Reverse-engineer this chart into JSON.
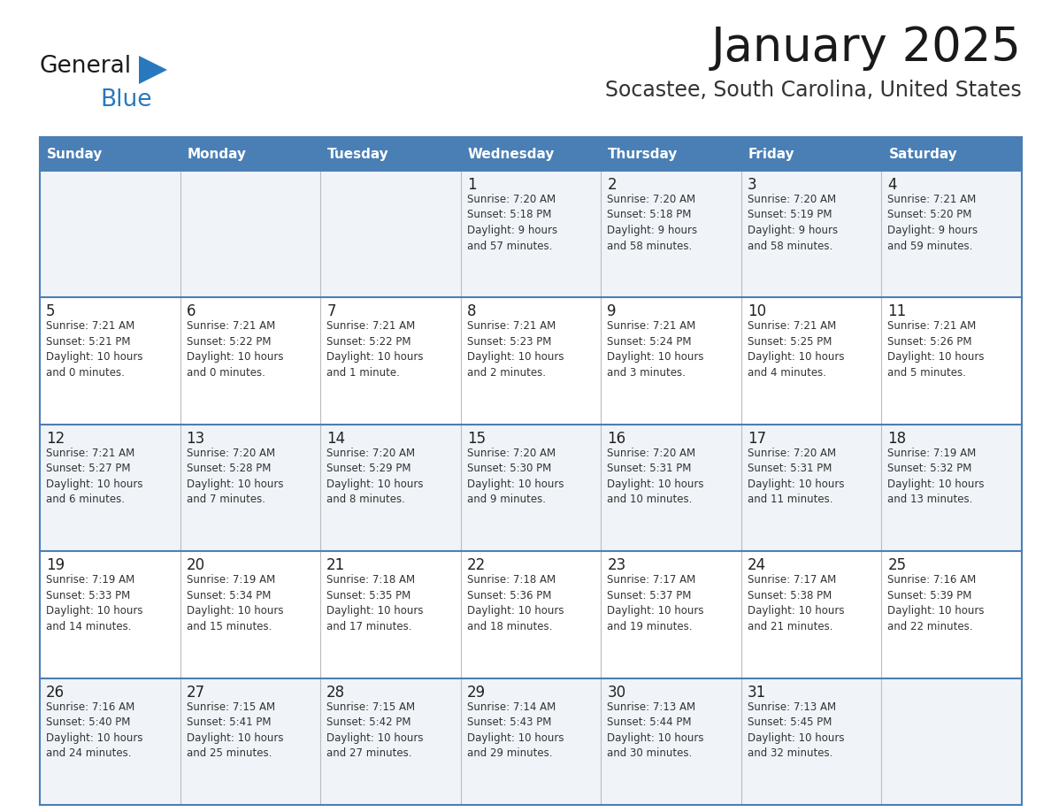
{
  "title": "January 2025",
  "subtitle": "Socastee, South Carolina, United States",
  "days_of_week": [
    "Sunday",
    "Monday",
    "Tuesday",
    "Wednesday",
    "Thursday",
    "Friday",
    "Saturday"
  ],
  "header_bg": "#4A7FB5",
  "header_text": "#FFFFFF",
  "row_bg_light": "#F0F4F8",
  "row_bg_white": "#FFFFFF",
  "border_color": "#4A7FB5",
  "cell_text_color": "#333333",
  "day_num_color": "#222222",
  "title_color": "#1a1a1a",
  "subtitle_color": "#333333",
  "logo_general_color": "#1a1a1a",
  "logo_blue_color": "#2878BE",
  "calendar": [
    [
      {
        "day": null,
        "info": ""
      },
      {
        "day": null,
        "info": ""
      },
      {
        "day": null,
        "info": ""
      },
      {
        "day": 1,
        "info": "Sunrise: 7:20 AM\nSunset: 5:18 PM\nDaylight: 9 hours\nand 57 minutes."
      },
      {
        "day": 2,
        "info": "Sunrise: 7:20 AM\nSunset: 5:18 PM\nDaylight: 9 hours\nand 58 minutes."
      },
      {
        "day": 3,
        "info": "Sunrise: 7:20 AM\nSunset: 5:19 PM\nDaylight: 9 hours\nand 58 minutes."
      },
      {
        "day": 4,
        "info": "Sunrise: 7:21 AM\nSunset: 5:20 PM\nDaylight: 9 hours\nand 59 minutes."
      }
    ],
    [
      {
        "day": 5,
        "info": "Sunrise: 7:21 AM\nSunset: 5:21 PM\nDaylight: 10 hours\nand 0 minutes."
      },
      {
        "day": 6,
        "info": "Sunrise: 7:21 AM\nSunset: 5:22 PM\nDaylight: 10 hours\nand 0 minutes."
      },
      {
        "day": 7,
        "info": "Sunrise: 7:21 AM\nSunset: 5:22 PM\nDaylight: 10 hours\nand 1 minute."
      },
      {
        "day": 8,
        "info": "Sunrise: 7:21 AM\nSunset: 5:23 PM\nDaylight: 10 hours\nand 2 minutes."
      },
      {
        "day": 9,
        "info": "Sunrise: 7:21 AM\nSunset: 5:24 PM\nDaylight: 10 hours\nand 3 minutes."
      },
      {
        "day": 10,
        "info": "Sunrise: 7:21 AM\nSunset: 5:25 PM\nDaylight: 10 hours\nand 4 minutes."
      },
      {
        "day": 11,
        "info": "Sunrise: 7:21 AM\nSunset: 5:26 PM\nDaylight: 10 hours\nand 5 minutes."
      }
    ],
    [
      {
        "day": 12,
        "info": "Sunrise: 7:21 AM\nSunset: 5:27 PM\nDaylight: 10 hours\nand 6 minutes."
      },
      {
        "day": 13,
        "info": "Sunrise: 7:20 AM\nSunset: 5:28 PM\nDaylight: 10 hours\nand 7 minutes."
      },
      {
        "day": 14,
        "info": "Sunrise: 7:20 AM\nSunset: 5:29 PM\nDaylight: 10 hours\nand 8 minutes."
      },
      {
        "day": 15,
        "info": "Sunrise: 7:20 AM\nSunset: 5:30 PM\nDaylight: 10 hours\nand 9 minutes."
      },
      {
        "day": 16,
        "info": "Sunrise: 7:20 AM\nSunset: 5:31 PM\nDaylight: 10 hours\nand 10 minutes."
      },
      {
        "day": 17,
        "info": "Sunrise: 7:20 AM\nSunset: 5:31 PM\nDaylight: 10 hours\nand 11 minutes."
      },
      {
        "day": 18,
        "info": "Sunrise: 7:19 AM\nSunset: 5:32 PM\nDaylight: 10 hours\nand 13 minutes."
      }
    ],
    [
      {
        "day": 19,
        "info": "Sunrise: 7:19 AM\nSunset: 5:33 PM\nDaylight: 10 hours\nand 14 minutes."
      },
      {
        "day": 20,
        "info": "Sunrise: 7:19 AM\nSunset: 5:34 PM\nDaylight: 10 hours\nand 15 minutes."
      },
      {
        "day": 21,
        "info": "Sunrise: 7:18 AM\nSunset: 5:35 PM\nDaylight: 10 hours\nand 17 minutes."
      },
      {
        "day": 22,
        "info": "Sunrise: 7:18 AM\nSunset: 5:36 PM\nDaylight: 10 hours\nand 18 minutes."
      },
      {
        "day": 23,
        "info": "Sunrise: 7:17 AM\nSunset: 5:37 PM\nDaylight: 10 hours\nand 19 minutes."
      },
      {
        "day": 24,
        "info": "Sunrise: 7:17 AM\nSunset: 5:38 PM\nDaylight: 10 hours\nand 21 minutes."
      },
      {
        "day": 25,
        "info": "Sunrise: 7:16 AM\nSunset: 5:39 PM\nDaylight: 10 hours\nand 22 minutes."
      }
    ],
    [
      {
        "day": 26,
        "info": "Sunrise: 7:16 AM\nSunset: 5:40 PM\nDaylight: 10 hours\nand 24 minutes."
      },
      {
        "day": 27,
        "info": "Sunrise: 7:15 AM\nSunset: 5:41 PM\nDaylight: 10 hours\nand 25 minutes."
      },
      {
        "day": 28,
        "info": "Sunrise: 7:15 AM\nSunset: 5:42 PM\nDaylight: 10 hours\nand 27 minutes."
      },
      {
        "day": 29,
        "info": "Sunrise: 7:14 AM\nSunset: 5:43 PM\nDaylight: 10 hours\nand 29 minutes."
      },
      {
        "day": 30,
        "info": "Sunrise: 7:13 AM\nSunset: 5:44 PM\nDaylight: 10 hours\nand 30 minutes."
      },
      {
        "day": 31,
        "info": "Sunrise: 7:13 AM\nSunset: 5:45 PM\nDaylight: 10 hours\nand 32 minutes."
      },
      {
        "day": null,
        "info": ""
      }
    ]
  ]
}
